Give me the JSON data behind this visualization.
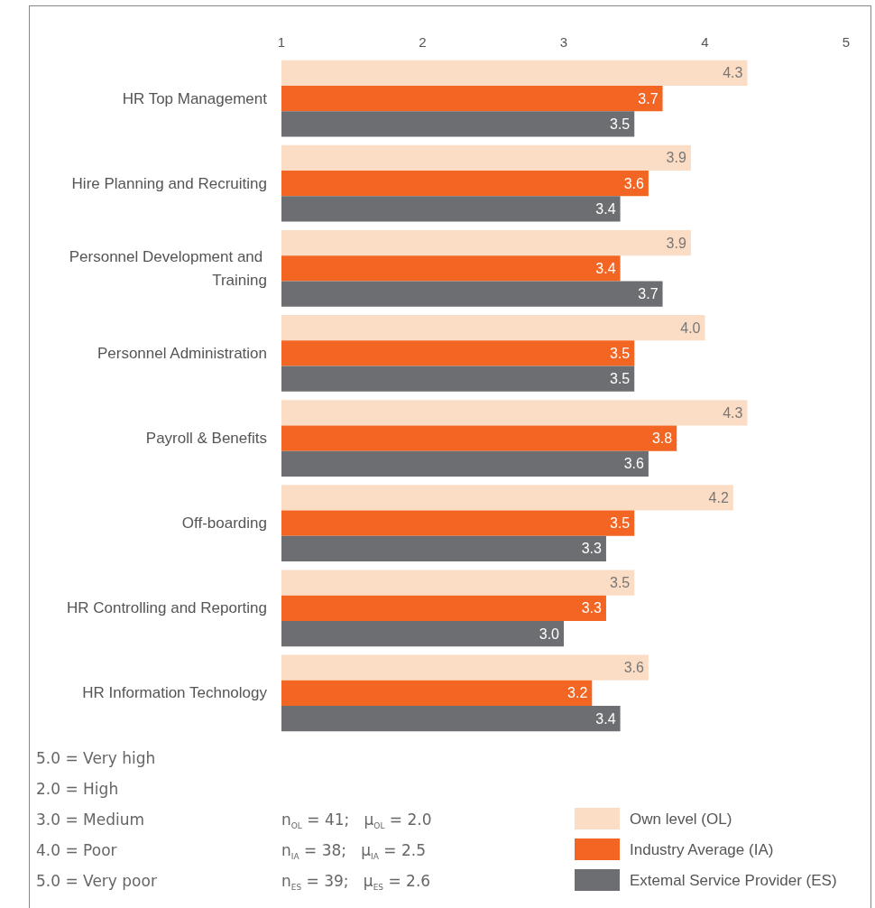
{
  "chart_data": {
    "type": "bar",
    "orientation": "horizontal",
    "categories": [
      "HR Top Management",
      "Hire Planning and Recruiting",
      "Personnel Development and Training",
      "Personnel Administration",
      "Payroll & Benefits",
      "Off-boarding",
      "HR Controlling and Reporting",
      "HR Information Technology"
    ],
    "series": [
      {
        "name": "Own level (OL)",
        "color": "#fbdcc5",
        "values": [
          4.3,
          3.9,
          3.9,
          4.0,
          4.3,
          4.2,
          3.5,
          3.6
        ],
        "value_labels": [
          "4.3",
          "3.9",
          "3.9",
          "4.0",
          "4.3",
          "4.2",
          "3.5",
          "3.6"
        ]
      },
      {
        "name": "Industry Average (IA)",
        "color": "#f26522",
        "values": [
          3.7,
          3.6,
          3.4,
          3.5,
          3.8,
          3.5,
          3.3,
          3.2
        ],
        "value_labels": [
          "3.7",
          "3.6",
          "3.4",
          "3.5",
          "3.8",
          "3.5",
          "3.3",
          "3.2"
        ]
      },
      {
        "name": "Extemal Service Provider (ES)",
        "color": "#6d6e71",
        "values": [
          3.5,
          3.4,
          3.7,
          3.5,
          3.6,
          3.3,
          3.0,
          3.4
        ],
        "value_labels": [
          "3.5",
          "3.4",
          "3.7",
          "3.5",
          "3.6",
          "3.3",
          "3.0",
          "3.4"
        ]
      }
    ],
    "xlim": [
      1,
      5
    ],
    "xticks": [
      1,
      2,
      3,
      4,
      5
    ],
    "grid": false,
    "legend": "bottom right",
    "annotations": [
      "5.0 = Very high",
      "2.0 = High",
      "3.0 = Medium",
      "4.0 = Poor",
      "5.0 = Very poor",
      "n$_{OL}$ = 41;   μ$_{OL}$ = 2.0",
      "n$_{IA}$ = 38;   μ$_{IA}$ = 2.5",
      "n$_{ES}$ = 39;   μ$_{ES}$ = 2.6"
    ]
  }
}
